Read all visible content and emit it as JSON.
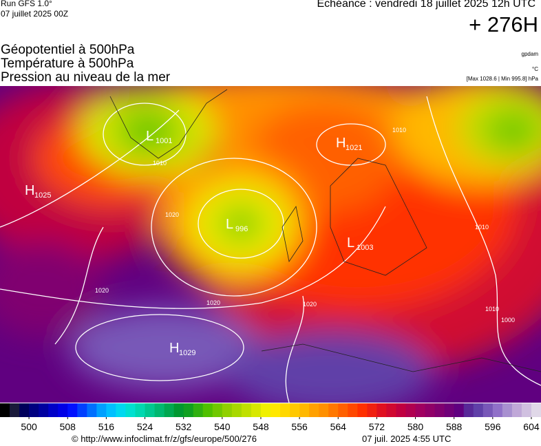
{
  "header": {
    "run": "Run GFS 1.0°",
    "run_date": "07 juillet 2025 00Z",
    "valid": "Echéance : vendredi 18 juillet 2025 12h UTC",
    "lead": "+ 276H",
    "fields": [
      "Géopotentiel à 500hPa",
      "Température à 500hPa",
      "Pression au niveau de la mer"
    ],
    "units": [
      "gpdam",
      "°C",
      "[Max 1028.6 | Min 995.8] hPa"
    ]
  },
  "pressure_centers": [
    {
      "letter": "L",
      "value": 1001
    },
    {
      "letter": "H",
      "value": 1021
    },
    {
      "letter": "H",
      "value": 1025
    },
    {
      "letter": "L",
      "value": 996
    },
    {
      "letter": "L",
      "value": 1003
    },
    {
      "letter": "H",
      "value": 1029
    }
  ],
  "contour_labels": [
    1010,
    1010,
    1020,
    1020,
    1020,
    1020,
    1010,
    1000,
    1010
  ],
  "colorbar": {
    "lim": [
      494,
      606
    ],
    "ticks": [
      500,
      508,
      516,
      524,
      532,
      540,
      548,
      556,
      564,
      572,
      580,
      588,
      596,
      604
    ],
    "colors": [
      "#000000",
      "#1a1a3a",
      "#00005a",
      "#000080",
      "#0000a0",
      "#0000c8",
      "#0000e6",
      "#0010ff",
      "#0040ff",
      "#0070ff",
      "#00a0ff",
      "#00c0ff",
      "#00d8f0",
      "#00e0d0",
      "#00d8b0",
      "#00c890",
      "#00b870",
      "#00a850",
      "#009830",
      "#10a020",
      "#30b010",
      "#50c000",
      "#70c800",
      "#90d000",
      "#a8d800",
      "#c0e000",
      "#d8e800",
      "#f0f000",
      "#ffe800",
      "#ffd800",
      "#ffc800",
      "#ffb800",
      "#ffa000",
      "#ff9000",
      "#ff7800",
      "#ff6000",
      "#ff4800",
      "#ff3000",
      "#f02010",
      "#e01020",
      "#d00830",
      "#c00040",
      "#b00050",
      "#a00060",
      "#900068",
      "#800070",
      "#700078",
      "#600080",
      "#582898",
      "#6040a8",
      "#7858b8",
      "#9070c8",
      "#a890d0",
      "#c0a8d8",
      "#d0c0e0",
      "#e0d8e8"
    ]
  },
  "footer": {
    "source": "© http://www.infoclimat.fr/z/gfs/europe/500/276",
    "generated": "07 juil. 2025  4:55 UTC"
  }
}
